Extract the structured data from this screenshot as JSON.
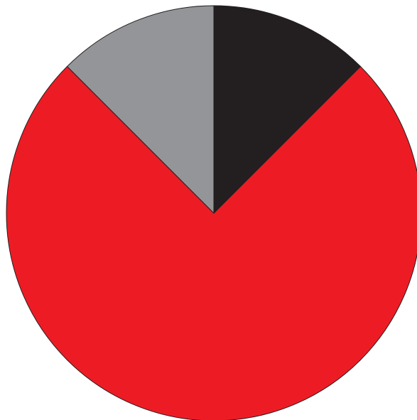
{
  "chart_data": {
    "type": "pie",
    "title": "",
    "start_angle_deg": 0,
    "direction": "clockwise",
    "slices": [
      {
        "label": "",
        "value": 12.5,
        "color": "#231f20"
      },
      {
        "label": "",
        "value": 75.0,
        "color": "#ed1c24"
      },
      {
        "label": "",
        "value": 12.5,
        "color": "#939598"
      }
    ],
    "outline_color": "#231f20",
    "background": "#ffffff"
  }
}
